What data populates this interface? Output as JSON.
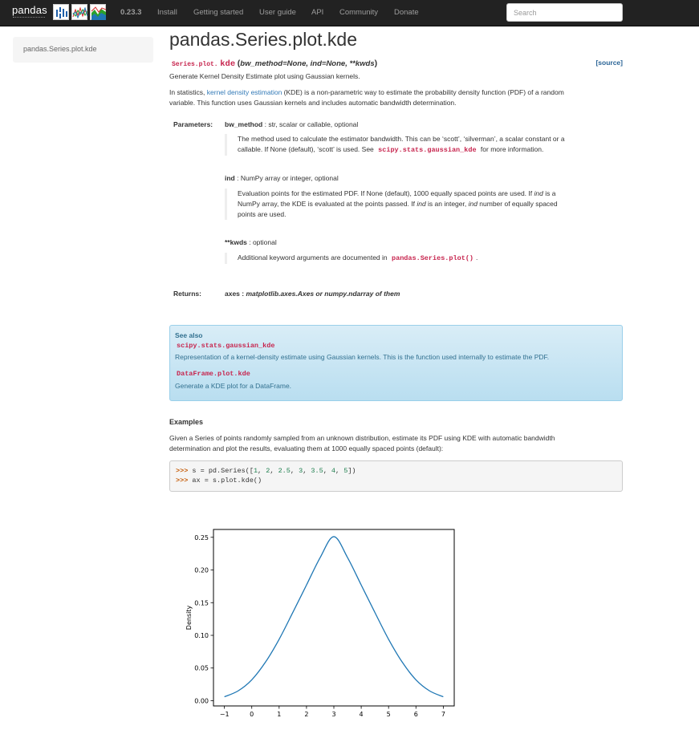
{
  "navbar": {
    "brand": "pandas",
    "version": "0.23.3",
    "links": [
      "Install",
      "Getting started",
      "User guide",
      "API",
      "Community",
      "Donate"
    ],
    "search_placeholder": "Search"
  },
  "sidebar": {
    "current": "pandas.Series.plot.kde"
  },
  "main": {
    "title": "pandas.Series.plot.kde",
    "signature": {
      "prefix": "Series.plot.",
      "name": "kde",
      "params": "bw_method=None, ind=None, **kwds",
      "source": "[source]"
    },
    "summary": "Generate Kernel Density Estimate plot using Gaussian kernels.",
    "description": {
      "before": "In statistics, ",
      "link": "kernel density estimation",
      "after_line1": " (KDE) is a non-parametric way to estimate the probability density function (PDF) of a random",
      "line2": "variable. This function uses Gaussian kernels and includes automatic bandwidth determination."
    },
    "parameters_label": "Parameters:",
    "parameters": [
      {
        "name": "bw_method",
        "type": " : str, scalar or callable, optional",
        "desc1": "The method used to calculate the estimator bandwidth. This can be ‘scott’, ‘silverman’, a scalar constant or a",
        "desc2_before": "callable. If None (default), ‘scott’ is used. See ",
        "desc2_code": "scipy.stats.gaussian_kde",
        "desc2_after": " for more information."
      },
      {
        "name": "ind",
        "type": " : NumPy array or integer, optional",
        "desc1_before": "Evaluation points for the estimated PDF. If None (default), 1000 equally spaced points are used. If ",
        "desc1_em": "ind",
        "desc1_after": " is a",
        "desc2_before": "NumPy array, the KDE is evaluated at the points passed. If ",
        "desc2_em1": "ind",
        "desc2_mid": " is an integer, ",
        "desc2_em2": "ind",
        "desc2_after": " number of equally spaced",
        "desc3": "points are used."
      },
      {
        "name": "**kwds",
        "type": " : optional",
        "desc1_before": "Additional keyword arguments are documented in ",
        "desc1_code": "pandas.Series.plot()",
        "desc1_after": "."
      }
    ],
    "returns_label": "Returns:",
    "returns": {
      "name": "axes",
      "type": "matplotlib.axes.Axes or numpy.ndarray of them"
    },
    "see_also": {
      "title": "See also",
      "items": [
        {
          "code": "scipy.stats.gaussian_kde",
          "desc": "Representation of a kernel-density estimate using Gaussian kernels. This is the function used internally to estimate the PDF."
        },
        {
          "code": "DataFrame.plot.kde",
          "desc": "Generate a KDE plot for a DataFrame."
        }
      ]
    },
    "examples_title": "Examples",
    "examples_text1": "Given a Series of points randomly sampled from an unknown distribution, estimate its PDF using KDE with automatic bandwidth",
    "examples_text2": "determination and plot the results, evaluating them at 1000 equally spaced points (default):",
    "code": {
      "prompt": ">>>",
      "line1_pre": " s = pd.Series([",
      "line1_nums": [
        "1",
        "2",
        "2.5",
        "3",
        "3.5",
        "4",
        "5"
      ],
      "line1_post": "])",
      "line2": " ax = s.plot.kde()"
    }
  },
  "chart_data": {
    "type": "line",
    "title": "",
    "xlabel": "",
    "ylabel": "Density",
    "xlim": [
      -1.4,
      7.4
    ],
    "ylim": [
      -0.008,
      0.262
    ],
    "xticks": [
      -1,
      0,
      1,
      2,
      3,
      4,
      5,
      6,
      7
    ],
    "yticks": [
      0.0,
      0.05,
      0.1,
      0.15,
      0.2,
      0.25
    ],
    "grid": false,
    "series": [
      {
        "color": "#1f77b4",
        "x": [
          -1,
          -0.5,
          0,
          0.5,
          1,
          1.5,
          2,
          2.5,
          3,
          3.5,
          4,
          4.5,
          5,
          5.5,
          6,
          6.5,
          7
        ],
        "y": [
          0.006,
          0.015,
          0.032,
          0.059,
          0.094,
          0.135,
          0.177,
          0.219,
          0.251,
          0.219,
          0.177,
          0.135,
          0.094,
          0.059,
          0.032,
          0.015,
          0.006
        ]
      }
    ]
  }
}
